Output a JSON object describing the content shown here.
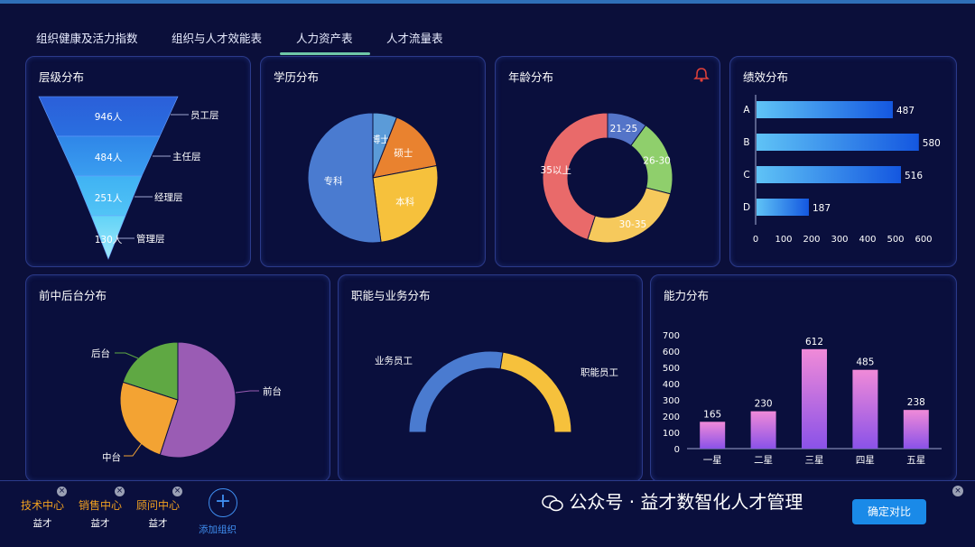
{
  "tabs": [
    {
      "label": "组织健康及活力指数",
      "active": false
    },
    {
      "label": "组织与人才效能表",
      "active": false
    },
    {
      "label": "人力资产表",
      "active": true
    },
    {
      "label": "人才流量表",
      "active": false
    }
  ],
  "cards": {
    "level": {
      "title": "层级分布"
    },
    "education": {
      "title": "学历分布"
    },
    "age": {
      "title": "年龄分布"
    },
    "performance": {
      "title": "绩效分布"
    },
    "office": {
      "title": "前中后台分布"
    },
    "function": {
      "title": "职能与业务分布"
    },
    "ability": {
      "title": "能力分布"
    }
  },
  "colors": {
    "background": "#0b0f3a",
    "accent_tab": "#6fc7a7",
    "card_border": "#2b3a8a",
    "org_name": "#f0a020",
    "add_blue": "#3f8ef0",
    "bell": "#e0403a"
  },
  "icons": {
    "bell": "bell-icon",
    "add": "plus-circle-icon",
    "wechat": "wechat-icon",
    "close": "close-icon"
  },
  "chart_data": [
    {
      "type": "funnel",
      "title": "层级分布",
      "categories": [
        "员工层",
        "主任层",
        "经理层",
        "管理层"
      ],
      "values": [
        946,
        484,
        251,
        130
      ],
      "value_labels": [
        "946人",
        "484人",
        "251人",
        "130人"
      ]
    },
    {
      "type": "pie",
      "title": "学历分布",
      "categories": [
        "博士",
        "硕士",
        "本科",
        "专科"
      ],
      "values": [
        6,
        16,
        26,
        52
      ]
    },
    {
      "type": "pie",
      "title": "年龄分布",
      "variant": "donut",
      "categories": [
        "21-25",
        "26-30",
        "30-35",
        "35以上"
      ],
      "values": [
        10,
        19,
        26,
        45
      ]
    },
    {
      "type": "bar",
      "title": "绩效分布",
      "orientation": "horizontal",
      "categories": [
        "A",
        "B",
        "C",
        "D"
      ],
      "values": [
        487,
        580,
        516,
        187
      ],
      "xlim": [
        0,
        600
      ],
      "xticks": [
        "0",
        "100",
        "200",
        "300",
        "400",
        "500",
        "600"
      ]
    },
    {
      "type": "pie",
      "title": "前中后台分布",
      "categories": [
        "前台",
        "中台",
        "后台"
      ],
      "values": [
        55,
        25,
        20
      ]
    },
    {
      "type": "pie",
      "title": "职能与业务分布",
      "variant": "half-donut",
      "categories": [
        "业务员工",
        "职能员工"
      ],
      "values": [
        55,
        45
      ]
    },
    {
      "type": "bar",
      "title": "能力分布",
      "categories": [
        "一星",
        "二星",
        "三星",
        "四星",
        "五星"
      ],
      "values": [
        165,
        230,
        612,
        485,
        238
      ],
      "ylim": [
        0,
        700
      ],
      "yticks": [
        "0",
        "100",
        "200",
        "300",
        "400",
        "500",
        "600",
        "700"
      ]
    }
  ],
  "bottom": {
    "orgs": [
      {
        "name": "技术中心",
        "sub": "益才"
      },
      {
        "name": "销售中心",
        "sub": "益才"
      },
      {
        "name": "顾问中心",
        "sub": "益才"
      }
    ],
    "add_label": "添加组织",
    "close_glyph": "×",
    "add_glyph": "+",
    "confirm_label": "确定对比"
  },
  "watermark": {
    "text": "公众号 · 益才数智化人才管理"
  }
}
